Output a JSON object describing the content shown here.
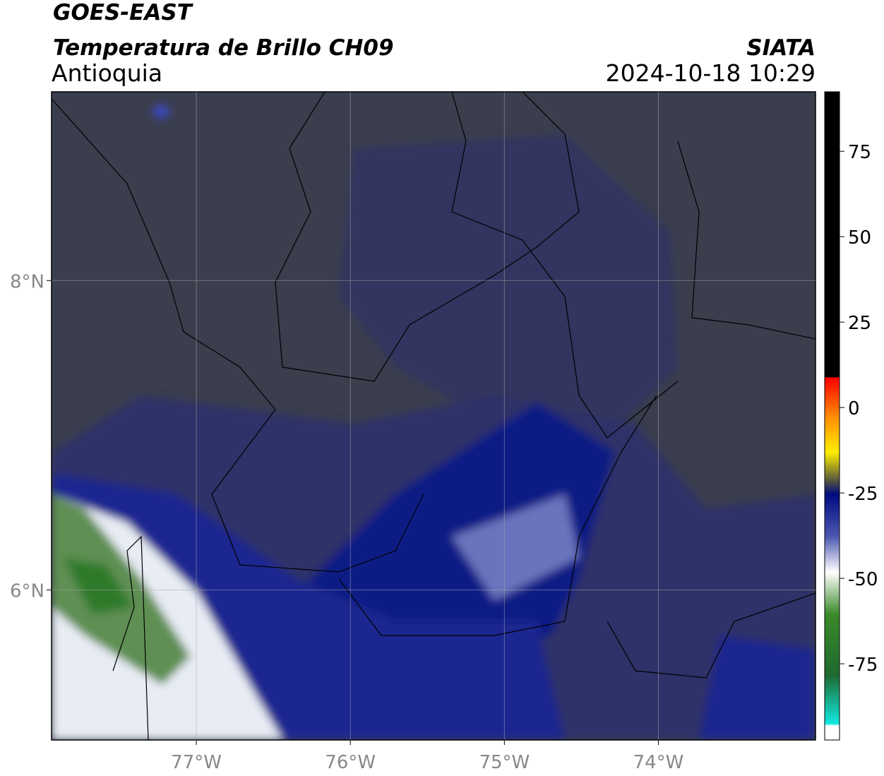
{
  "header": {
    "title": "GOES-EAST",
    "subtitle": "Temperatura de Brillo CH09",
    "region": "Antioquia",
    "source": "SIATA",
    "datetime": "2024-10-18 10:29"
  },
  "chart_data": {
    "type": "map",
    "xlim": [
      -77.94,
      -72.98
    ],
    "ylim": [
      5.03,
      9.22
    ],
    "xticks": [
      {
        "value": -77,
        "label": "77°W"
      },
      {
        "value": -76,
        "label": "76°W"
      },
      {
        "value": -75,
        "label": "75°W"
      },
      {
        "value": -74,
        "label": "74°W"
      }
    ],
    "yticks": [
      {
        "value": 8,
        "label": "8°N"
      },
      {
        "value": 6,
        "label": "6°N"
      }
    ],
    "grid": true,
    "colorbar": {
      "lim": [
        -97.3,
        92.4
      ],
      "ticks": [
        75,
        50,
        25,
        0,
        -25,
        -50,
        -75
      ]
    }
  }
}
